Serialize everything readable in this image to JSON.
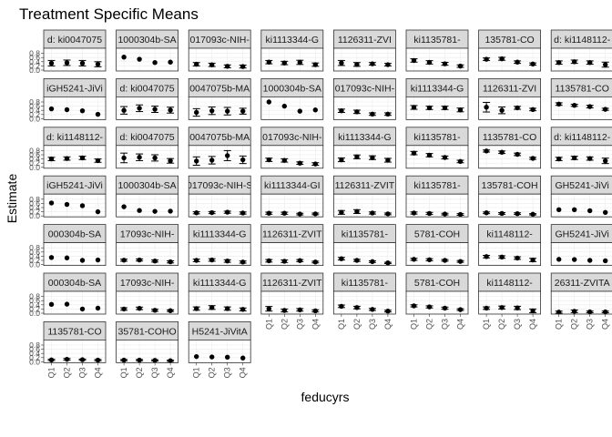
{
  "chart_data": {
    "type": "scatter",
    "title": "Treatment Specific Means",
    "xlabel": "feducyrs",
    "ylabel": "Estimate",
    "categories": [
      "Q1",
      "Q2",
      "Q3",
      "Q4"
    ],
    "yticks": [
      "0.0",
      "0.2",
      "0.4",
      "0.6",
      "0.8"
    ],
    "ylim": [
      0,
      1.0
    ],
    "grid": true,
    "facets": [
      {
        "label": "d: ki0047075",
        "values": [
          0.33,
          0.35,
          0.33,
          0.28
        ],
        "lower": [
          0.2,
          0.22,
          0.2,
          0.16
        ],
        "upper": [
          0.46,
          0.48,
          0.46,
          0.4
        ]
      },
      {
        "label": "1000304b-SA",
        "values": [
          0.62,
          0.52,
          0.36,
          0.38
        ],
        "lower": null,
        "upper": null
      },
      {
        "label": "017093c-NIH-",
        "values": [
          0.28,
          0.25,
          0.18,
          0.17
        ],
        "lower": [
          0.2,
          0.17,
          0.11,
          0.1
        ],
        "upper": [
          0.36,
          0.33,
          0.25,
          0.24
        ]
      },
      {
        "label": "ki1113344-G",
        "values": [
          0.38,
          0.34,
          0.37,
          0.26
        ],
        "lower": [
          0.3,
          0.26,
          0.27,
          0.18
        ],
        "upper": [
          0.46,
          0.42,
          0.47,
          0.34
        ]
      },
      {
        "label": "1126311-ZVI",
        "values": [
          0.34,
          0.27,
          0.3,
          0.26
        ],
        "lower": [
          0.22,
          0.18,
          0.24,
          0.2
        ],
        "upper": [
          0.46,
          0.36,
          0.36,
          0.32
        ]
      },
      {
        "label": "ki1135781-",
        "values": [
          0.46,
          0.37,
          0.3,
          0.19
        ],
        "lower": [
          0.38,
          0.29,
          0.23,
          0.13
        ],
        "upper": [
          0.54,
          0.45,
          0.37,
          0.25
        ]
      },
      {
        "label": "135781-CO",
        "values": [
          0.52,
          0.54,
          0.38,
          0.29
        ],
        "lower": [
          0.46,
          0.47,
          0.32,
          0.24
        ],
        "upper": [
          0.58,
          0.61,
          0.44,
          0.34
        ]
      },
      {
        "label": "d: ki1148112-",
        "values": [
          0.36,
          0.4,
          0.36,
          0.26
        ],
        "lower": [
          0.28,
          0.32,
          0.28,
          0.14
        ],
        "upper": [
          0.44,
          0.48,
          0.44,
          0.38
        ]
      },
      {
        "label": "iGH5241-JiVi",
        "values": [
          0.47,
          0.43,
          0.38,
          0.21
        ],
        "lower": null,
        "upper": null
      },
      {
        "label": "d: ki0047075",
        "values": [
          0.4,
          0.5,
          0.45,
          0.41
        ],
        "lower": [
          0.22,
          0.34,
          0.3,
          0.27
        ],
        "upper": [
          0.58,
          0.66,
          0.6,
          0.55
        ]
      },
      {
        "label": "0047075b-MA",
        "values": [
          0.3,
          0.38,
          0.36,
          0.36
        ],
        "lower": [
          0.12,
          0.2,
          0.18,
          0.22
        ],
        "upper": [
          0.48,
          0.56,
          0.54,
          0.5
        ]
      },
      {
        "label": "1000304b-SA",
        "values": [
          0.8,
          0.6,
          0.36,
          0.42
        ],
        "lower": null,
        "upper": null
      },
      {
        "label": "017093c-NIH-",
        "values": [
          0.38,
          0.33,
          0.22,
          0.22
        ],
        "lower": [
          0.3,
          0.25,
          0.16,
          0.16
        ],
        "upper": [
          0.46,
          0.41,
          0.28,
          0.28
        ]
      },
      {
        "label": "ki1113344-G",
        "values": [
          0.54,
          0.52,
          0.52,
          0.42
        ],
        "lower": [
          0.45,
          0.44,
          0.44,
          0.33
        ],
        "upper": [
          0.63,
          0.6,
          0.6,
          0.51
        ]
      },
      {
        "label": "1126311-ZVI",
        "values": [
          0.55,
          0.4,
          0.52,
          0.44
        ],
        "lower": [
          0.32,
          0.24,
          0.45,
          0.38
        ],
        "upper": [
          0.78,
          0.56,
          0.59,
          0.5
        ]
      },
      {
        "label": "1135781-CO",
        "values": [
          0.7,
          0.64,
          0.58,
          0.45
        ],
        "lower": [
          0.64,
          0.59,
          0.52,
          0.4
        ],
        "upper": [
          0.76,
          0.69,
          0.64,
          0.5
        ]
      },
      {
        "label": "d: ki1148112-",
        "values": [
          0.4,
          0.42,
          0.45,
          0.32
        ],
        "lower": [
          0.32,
          0.34,
          0.37,
          0.24
        ],
        "upper": [
          0.48,
          0.5,
          0.53,
          0.4
        ]
      },
      {
        "label": "d: ki0047075",
        "values": [
          0.45,
          0.48,
          0.45,
          0.31
        ],
        "lower": [
          0.22,
          0.32,
          0.3,
          0.2
        ],
        "upper": [
          0.68,
          0.64,
          0.6,
          0.42
        ]
      },
      {
        "label": "0047075b-MA",
        "values": [
          0.3,
          0.34,
          0.56,
          0.36
        ],
        "lower": [
          0.1,
          0.16,
          0.32,
          0.18
        ],
        "upper": [
          0.5,
          0.52,
          0.8,
          0.54
        ]
      },
      {
        "label": "017093c-NIH-",
        "values": [
          0.36,
          0.33,
          0.2,
          0.16
        ],
        "lower": [
          0.28,
          0.25,
          0.14,
          0.1
        ],
        "upper": [
          0.44,
          0.41,
          0.26,
          0.22
        ]
      },
      {
        "label": "ki1113344-G",
        "values": [
          0.36,
          0.5,
          0.46,
          0.34
        ],
        "lower": [
          0.27,
          0.41,
          0.37,
          0.25
        ],
        "upper": [
          0.45,
          0.59,
          0.55,
          0.43
        ]
      },
      {
        "label": "ki1135781-",
        "values": [
          0.68,
          0.58,
          0.47,
          0.28
        ],
        "lower": [
          0.6,
          0.5,
          0.4,
          0.22
        ],
        "upper": [
          0.76,
          0.66,
          0.54,
          0.34
        ]
      },
      {
        "label": "1135781-CO",
        "values": [
          0.78,
          0.72,
          0.62,
          0.43
        ],
        "lower": [
          0.73,
          0.66,
          0.56,
          0.38
        ],
        "upper": [
          0.83,
          0.78,
          0.68,
          0.48
        ]
      },
      {
        "label": "d: ki1148112-",
        "values": [
          0.4,
          0.45,
          0.42,
          0.31
        ],
        "lower": [
          0.32,
          0.37,
          0.34,
          0.18
        ],
        "upper": [
          0.48,
          0.53,
          0.5,
          0.44
        ]
      },
      {
        "label": "iGH5241-JiVi",
        "values": [
          0.62,
          0.55,
          0.49,
          0.2
        ],
        "lower": null,
        "upper": null
      },
      {
        "label": "1000304b-SA",
        "values": [
          0.44,
          0.26,
          0.22,
          0.23
        ],
        "lower": null,
        "upper": null
      },
      {
        "label": "017093c-NIH-S",
        "values": [
          0.15,
          0.16,
          0.18,
          0.14
        ],
        "lower": [
          0.1,
          0.11,
          0.13,
          0.09
        ],
        "upper": [
          0.2,
          0.21,
          0.23,
          0.19
        ]
      },
      {
        "label": "ki1113344-GI",
        "values": [
          0.13,
          0.13,
          0.09,
          0.1
        ],
        "lower": [
          0.08,
          0.08,
          0.05,
          0.06
        ],
        "upper": [
          0.18,
          0.18,
          0.13,
          0.14
        ]
      },
      {
        "label": "1126311-ZVIT",
        "values": [
          0.17,
          0.21,
          0.14,
          0.1
        ],
        "lower": [
          0.08,
          0.12,
          0.09,
          0.06
        ],
        "upper": [
          0.26,
          0.3,
          0.19,
          0.14
        ]
      },
      {
        "label": "ki1135781-",
        "values": [
          0.14,
          0.12,
          0.09,
          0.07
        ],
        "lower": [
          0.09,
          0.07,
          0.05,
          0.03
        ],
        "upper": [
          0.19,
          0.17,
          0.13,
          0.11
        ]
      },
      {
        "label": "135781-COH",
        "values": [
          0.15,
          0.12,
          0.11,
          0.08
        ],
        "lower": [
          0.11,
          0.08,
          0.07,
          0.05
        ],
        "upper": [
          0.19,
          0.16,
          0.15,
          0.11
        ]
      },
      {
        "label": "GH5241-JiVi",
        "values": [
          0.3,
          0.3,
          0.25,
          0.17
        ],
        "lower": null,
        "upper": null
      },
      {
        "label": "000304b-SA",
        "values": [
          0.34,
          0.32,
          0.2,
          0.22
        ],
        "lower": null,
        "upper": null
      },
      {
        "label": "17093c-NIH-",
        "values": [
          0.21,
          0.22,
          0.17,
          0.13
        ],
        "lower": [
          0.16,
          0.17,
          0.12,
          0.08
        ],
        "upper": [
          0.26,
          0.27,
          0.22,
          0.18
        ]
      },
      {
        "label": "ki1113344-G",
        "values": [
          0.2,
          0.22,
          0.17,
          0.12
        ],
        "lower": [
          0.14,
          0.16,
          0.11,
          0.07
        ],
        "upper": [
          0.26,
          0.28,
          0.23,
          0.17
        ]
      },
      {
        "label": "1126311-ZVIT",
        "values": [
          0.18,
          0.16,
          0.19,
          0.12
        ],
        "lower": [
          0.12,
          0.1,
          0.14,
          0.08
        ],
        "upper": [
          0.24,
          0.22,
          0.24,
          0.16
        ]
      },
      {
        "label": "ki1135781-",
        "values": [
          0.28,
          0.2,
          0.14,
          0.08
        ],
        "lower": [
          0.22,
          0.15,
          0.1,
          0.05
        ],
        "upper": [
          0.34,
          0.25,
          0.18,
          0.11
        ]
      },
      {
        "label": "5781-COH",
        "values": [
          0.25,
          0.23,
          0.2,
          0.15
        ],
        "lower": [
          0.2,
          0.18,
          0.16,
          0.11
        ],
        "upper": [
          0.3,
          0.28,
          0.24,
          0.19
        ]
      },
      {
        "label": "ki1148112-",
        "values": [
          0.38,
          0.36,
          0.31,
          0.22
        ],
        "lower": [
          0.32,
          0.3,
          0.25,
          0.14
        ],
        "upper": [
          0.44,
          0.42,
          0.37,
          0.3
        ]
      },
      {
        "label": "GH5241-JiVi",
        "values": [
          0.25,
          0.24,
          0.2,
          0.18
        ],
        "lower": null,
        "upper": null
      },
      {
        "label": "000304b-SA",
        "values": [
          0.42,
          0.43,
          0.2,
          0.24
        ],
        "lower": null,
        "upper": null
      },
      {
        "label": "17093c-NIH-",
        "values": [
          0.2,
          0.23,
          0.14,
          0.12
        ],
        "lower": [
          0.14,
          0.17,
          0.09,
          0.08
        ],
        "upper": [
          0.26,
          0.29,
          0.19,
          0.16
        ]
      },
      {
        "label": "ki1113344-G",
        "values": [
          0.22,
          0.27,
          0.22,
          0.18
        ],
        "lower": [
          0.14,
          0.18,
          0.14,
          0.11
        ],
        "upper": [
          0.3,
          0.36,
          0.3,
          0.25
        ]
      },
      {
        "label": "1126311-ZVIT",
        "values": [
          0.21,
          0.13,
          0.16,
          0.11
        ],
        "lower": [
          0.1,
          0.06,
          0.1,
          0.06
        ],
        "upper": [
          0.32,
          0.2,
          0.22,
          0.16
        ]
      },
      {
        "label": "ki1135781-",
        "values": [
          0.33,
          0.27,
          0.18,
          0.1
        ],
        "lower": [
          0.27,
          0.21,
          0.13,
          0.06
        ],
        "upper": [
          0.39,
          0.33,
          0.23,
          0.14
        ]
      },
      {
        "label": "5781-COH",
        "values": [
          0.35,
          0.3,
          0.24,
          0.17
        ],
        "lower": [
          0.3,
          0.25,
          0.19,
          0.13
        ],
        "upper": [
          0.4,
          0.35,
          0.29,
          0.21
        ]
      },
      {
        "label": "ki1148112-",
        "values": [
          0.24,
          0.27,
          0.25,
          0.11
        ],
        "lower": [
          0.18,
          0.2,
          0.17,
          0.02
        ],
        "upper": [
          0.3,
          0.34,
          0.33,
          0.2
        ]
      },
      {
        "label": "26311-ZVITA",
        "values": [
          0.05,
          0.09,
          0.06,
          0.06
        ],
        "lower": [
          0.0,
          0.03,
          0.02,
          0.02
        ],
        "upper": [
          0.1,
          0.15,
          0.1,
          0.1
        ]
      },
      {
        "label": "1135781-CO",
        "values": [
          0.09,
          0.12,
          0.1,
          0.08
        ],
        "lower": [
          0.06,
          0.08,
          0.07,
          0.05
        ],
        "upper": [
          0.12,
          0.16,
          0.13,
          0.11
        ]
      },
      {
        "label": "35781-COHO",
        "values": [
          0.08,
          0.08,
          0.07,
          0.05
        ],
        "lower": [
          0.05,
          0.05,
          0.04,
          0.02
        ],
        "upper": [
          0.11,
          0.11,
          0.1,
          0.08
        ]
      },
      {
        "label": "H5241-JiVitA",
        "values": [
          0.25,
          0.23,
          0.22,
          0.18
        ],
        "lower": null,
        "upper": null
      }
    ]
  }
}
